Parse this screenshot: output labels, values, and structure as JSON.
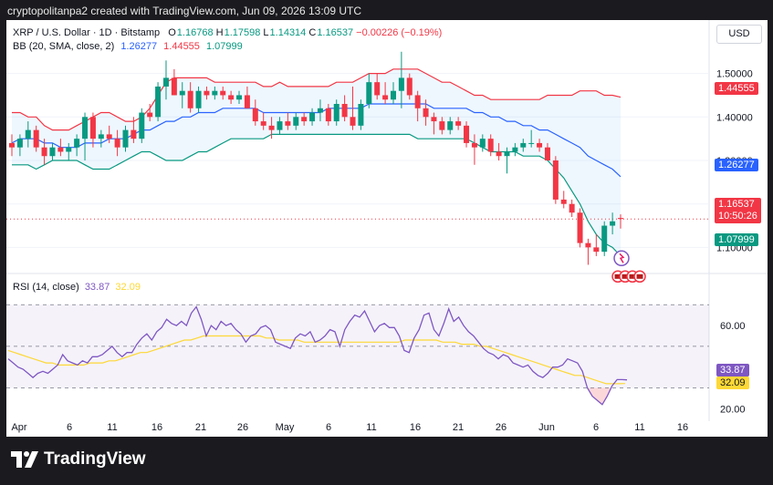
{
  "header": {
    "caption": "cryptopolitanpa2 created with TradingView.com, Jun 09, 2026 13:09 UTC"
  },
  "legend": {
    "symbol": "XRP / U.S. Dollar · 1D · Bitstamp",
    "o_label": "O",
    "o": "1.16768",
    "h_label": "H",
    "h": "1.17598",
    "l_label": "L",
    "l": "1.14314",
    "c_label": "C",
    "c": "1.16537",
    "change": "−0.00226 (−0.19%)",
    "bb_label": "BB (20, SMA, close, 2)",
    "bb_mid": "1.26277",
    "bb_upper": "1.44555",
    "bb_lower": "1.07999",
    "rsi_label": "RSI (14, close)",
    "rsi_value": "33.87",
    "rsi_ma": "32.09"
  },
  "currency": "USD",
  "price_badges": {
    "upper": "1.44555",
    "mid": "1.26277",
    "last": "1.16537",
    "countdown": "10:50:26",
    "lower": "1.07999"
  },
  "rsi_badges": {
    "rsi": "33.87",
    "ma": "32.09"
  },
  "footer": {
    "brand": "TradingView"
  },
  "colors": {
    "up": "#089981",
    "down": "#f23645",
    "bb_upper": "#f23645",
    "bb_mid": "#2962ff",
    "bb_lower": "#089981",
    "bb_fill": "#2196f3",
    "rsi": "#7e57c2",
    "rsi_ma": "#fdd835"
  },
  "chart_data": [
    {
      "type": "candlestick",
      "title": "XRP / U.S. Dollar · 1D · Bitstamp",
      "y_axis_ticks": [
        "1.10000",
        "1.20000",
        "1.30000",
        "1.40000",
        "1.50000"
      ],
      "ylim": [
        1.04,
        1.56
      ],
      "x_axis_ticks": [
        "Apr",
        "6",
        "11",
        "16",
        "21",
        "26",
        "May",
        "6",
        "11",
        "16",
        "21",
        "26",
        "Jun",
        "6",
        "11",
        "16"
      ],
      "candles": [
        [
          1.34,
          1.36,
          1.31,
          1.33
        ],
        [
          1.33,
          1.36,
          1.31,
          1.35
        ],
        [
          1.35,
          1.39,
          1.33,
          1.37
        ],
        [
          1.37,
          1.38,
          1.32,
          1.33
        ],
        [
          1.33,
          1.35,
          1.29,
          1.31
        ],
        [
          1.31,
          1.34,
          1.3,
          1.33
        ],
        [
          1.33,
          1.35,
          1.31,
          1.32
        ],
        [
          1.32,
          1.34,
          1.3,
          1.33
        ],
        [
          1.33,
          1.36,
          1.31,
          1.35
        ],
        [
          1.35,
          1.41,
          1.3,
          1.4
        ],
        [
          1.4,
          1.41,
          1.33,
          1.35
        ],
        [
          1.35,
          1.37,
          1.33,
          1.36
        ],
        [
          1.36,
          1.38,
          1.34,
          1.35
        ],
        [
          1.35,
          1.37,
          1.31,
          1.33
        ],
        [
          1.33,
          1.38,
          1.32,
          1.37
        ],
        [
          1.37,
          1.4,
          1.34,
          1.35
        ],
        [
          1.35,
          1.42,
          1.34,
          1.41
        ],
        [
          1.41,
          1.43,
          1.39,
          1.4
        ],
        [
          1.4,
          1.48,
          1.39,
          1.47
        ],
        [
          1.47,
          1.53,
          1.44,
          1.49
        ],
        [
          1.49,
          1.51,
          1.45,
          1.45
        ],
        [
          1.45,
          1.48,
          1.42,
          1.46
        ],
        [
          1.46,
          1.48,
          1.41,
          1.42
        ],
        [
          1.42,
          1.47,
          1.41,
          1.46
        ],
        [
          1.46,
          1.47,
          1.44,
          1.45
        ],
        [
          1.45,
          1.47,
          1.44,
          1.46
        ],
        [
          1.46,
          1.47,
          1.44,
          1.45
        ],
        [
          1.45,
          1.46,
          1.43,
          1.44
        ],
        [
          1.44,
          1.46,
          1.43,
          1.45
        ],
        [
          1.45,
          1.47,
          1.42,
          1.42
        ],
        [
          1.42,
          1.44,
          1.38,
          1.39
        ],
        [
          1.39,
          1.41,
          1.37,
          1.38
        ],
        [
          1.38,
          1.4,
          1.35,
          1.37
        ],
        [
          1.37,
          1.4,
          1.36,
          1.39
        ],
        [
          1.39,
          1.41,
          1.37,
          1.38
        ],
        [
          1.38,
          1.41,
          1.37,
          1.4
        ],
        [
          1.4,
          1.41,
          1.38,
          1.39
        ],
        [
          1.39,
          1.42,
          1.38,
          1.41
        ],
        [
          1.41,
          1.44,
          1.39,
          1.42
        ],
        [
          1.42,
          1.43,
          1.38,
          1.39
        ],
        [
          1.39,
          1.44,
          1.38,
          1.43
        ],
        [
          1.43,
          1.45,
          1.39,
          1.4
        ],
        [
          1.4,
          1.47,
          1.37,
          1.38
        ],
        [
          1.38,
          1.44,
          1.37,
          1.43
        ],
        [
          1.43,
          1.5,
          1.42,
          1.48
        ],
        [
          1.48,
          1.5,
          1.44,
          1.45
        ],
        [
          1.45,
          1.48,
          1.43,
          1.44
        ],
        [
          1.44,
          1.48,
          1.43,
          1.46
        ],
        [
          1.46,
          1.55,
          1.42,
          1.49
        ],
        [
          1.49,
          1.5,
          1.44,
          1.45
        ],
        [
          1.45,
          1.46,
          1.39,
          1.42
        ],
        [
          1.42,
          1.44,
          1.38,
          1.4
        ],
        [
          1.4,
          1.41,
          1.36,
          1.39
        ],
        [
          1.39,
          1.4,
          1.36,
          1.37
        ],
        [
          1.37,
          1.4,
          1.36,
          1.39
        ],
        [
          1.39,
          1.4,
          1.37,
          1.38
        ],
        [
          1.38,
          1.39,
          1.33,
          1.34
        ],
        [
          1.34,
          1.36,
          1.29,
          1.33
        ],
        [
          1.33,
          1.36,
          1.32,
          1.35
        ],
        [
          1.35,
          1.36,
          1.31,
          1.32
        ],
        [
          1.32,
          1.34,
          1.3,
          1.31
        ],
        [
          1.31,
          1.33,
          1.27,
          1.32
        ],
        [
          1.32,
          1.34,
          1.31,
          1.33
        ],
        [
          1.33,
          1.35,
          1.32,
          1.34
        ],
        [
          1.34,
          1.37,
          1.33,
          1.34
        ],
        [
          1.34,
          1.35,
          1.32,
          1.33
        ],
        [
          1.33,
          1.34,
          1.3,
          1.3
        ],
        [
          1.3,
          1.31,
          1.2,
          1.21
        ],
        [
          1.21,
          1.23,
          1.19,
          1.2
        ],
        [
          1.2,
          1.21,
          1.17,
          1.18
        ],
        [
          1.18,
          1.19,
          1.1,
          1.11
        ],
        [
          1.11,
          1.12,
          1.06,
          1.1
        ],
        [
          1.1,
          1.13,
          1.08,
          1.09
        ],
        [
          1.09,
          1.16,
          1.08,
          1.15
        ],
        [
          1.15,
          1.18,
          1.13,
          1.16
        ],
        [
          1.16768,
          1.17598,
          1.14314,
          1.16537
        ]
      ],
      "bollinger": {
        "upper": [
          1.41,
          1.41,
          1.4,
          1.4,
          1.38,
          1.37,
          1.37,
          1.37,
          1.38,
          1.39,
          1.4,
          1.41,
          1.41,
          1.4,
          1.39,
          1.39,
          1.4,
          1.42,
          1.45,
          1.48,
          1.49,
          1.49,
          1.49,
          1.49,
          1.49,
          1.48,
          1.48,
          1.48,
          1.48,
          1.48,
          1.48,
          1.47,
          1.47,
          1.48,
          1.47,
          1.47,
          1.47,
          1.47,
          1.47,
          1.47,
          1.48,
          1.48,
          1.48,
          1.49,
          1.5,
          1.5,
          1.5,
          1.51,
          1.51,
          1.51,
          1.51,
          1.5,
          1.49,
          1.48,
          1.48,
          1.47,
          1.46,
          1.45,
          1.45,
          1.44,
          1.44,
          1.44,
          1.44,
          1.44,
          1.44,
          1.44,
          1.45,
          1.45,
          1.45,
          1.45,
          1.46,
          1.46,
          1.46,
          1.45,
          1.45,
          1.44555
        ],
        "mid": [
          1.34,
          1.35,
          1.35,
          1.35,
          1.34,
          1.34,
          1.33,
          1.33,
          1.33,
          1.34,
          1.34,
          1.34,
          1.35,
          1.35,
          1.35,
          1.36,
          1.37,
          1.37,
          1.38,
          1.39,
          1.39,
          1.4,
          1.4,
          1.41,
          1.41,
          1.41,
          1.42,
          1.42,
          1.42,
          1.42,
          1.42,
          1.41,
          1.41,
          1.41,
          1.41,
          1.41,
          1.41,
          1.41,
          1.41,
          1.42,
          1.42,
          1.42,
          1.42,
          1.42,
          1.43,
          1.43,
          1.43,
          1.43,
          1.43,
          1.43,
          1.43,
          1.43,
          1.42,
          1.42,
          1.42,
          1.42,
          1.42,
          1.41,
          1.41,
          1.4,
          1.4,
          1.39,
          1.39,
          1.38,
          1.38,
          1.37,
          1.37,
          1.36,
          1.35,
          1.34,
          1.33,
          1.31,
          1.3,
          1.29,
          1.28,
          1.26277
        ],
        "lower": [
          1.29,
          1.29,
          1.29,
          1.28,
          1.29,
          1.3,
          1.3,
          1.3,
          1.3,
          1.29,
          1.28,
          1.28,
          1.28,
          1.29,
          1.3,
          1.31,
          1.32,
          1.32,
          1.31,
          1.3,
          1.3,
          1.3,
          1.31,
          1.32,
          1.32,
          1.33,
          1.34,
          1.35,
          1.35,
          1.35,
          1.35,
          1.35,
          1.36,
          1.36,
          1.36,
          1.36,
          1.36,
          1.36,
          1.36,
          1.36,
          1.36,
          1.36,
          1.36,
          1.36,
          1.36,
          1.36,
          1.36,
          1.36,
          1.36,
          1.36,
          1.35,
          1.35,
          1.35,
          1.35,
          1.35,
          1.35,
          1.35,
          1.34,
          1.33,
          1.32,
          1.32,
          1.32,
          1.32,
          1.31,
          1.31,
          1.31,
          1.3,
          1.28,
          1.26,
          1.23,
          1.2,
          1.16,
          1.13,
          1.11,
          1.1,
          1.07999
        ]
      }
    },
    {
      "type": "line",
      "title": "RSI (14, close)",
      "y_axis_ticks": [
        "20.00",
        "40.00",
        "60.00"
      ],
      "ylim": [
        14,
        78
      ],
      "bands": {
        "upper": 70,
        "middle": 50,
        "lower": 30
      },
      "series": [
        {
          "name": "RSI (14, close)",
          "values": [
            44,
            42,
            40,
            39,
            37,
            35,
            37,
            38,
            37,
            39,
            41,
            46,
            43,
            42,
            41,
            43,
            42,
            45,
            45,
            46,
            48,
            50,
            47,
            45,
            47,
            47,
            51,
            54,
            56,
            53,
            57,
            59,
            63,
            61,
            60,
            62,
            60,
            66,
            69,
            63,
            55,
            60,
            58,
            62,
            60,
            61,
            58,
            56,
            52,
            55,
            56,
            59,
            60,
            58,
            52,
            51,
            50,
            49,
            54,
            56,
            55,
            57,
            52,
            53,
            55,
            58,
            57,
            50,
            58,
            62,
            65,
            64,
            67,
            62,
            57,
            60,
            61,
            59,
            59,
            55,
            48,
            47,
            54,
            58,
            65,
            66,
            58,
            55,
            61,
            68,
            62,
            64,
            60,
            57,
            55,
            52,
            49,
            47,
            46,
            44,
            46,
            45,
            42,
            41,
            40,
            41,
            38,
            36,
            35,
            37,
            40,
            40,
            41,
            44,
            43,
            42,
            38,
            30,
            26,
            24,
            22,
            26,
            31,
            34,
            34,
            33.87
          ]
        },
        {
          "name": "MA",
          "values": [
            48,
            47,
            46,
            45,
            44,
            43,
            42,
            42,
            41,
            41,
            41,
            41,
            41,
            42,
            42,
            42,
            43,
            43,
            44,
            45,
            46,
            47,
            47,
            48,
            49,
            50,
            51,
            52,
            53,
            53,
            54,
            55,
            55,
            55,
            55,
            55,
            55,
            55,
            55,
            55,
            55,
            54,
            54,
            53,
            53,
            53,
            53,
            52,
            52,
            52,
            52,
            52,
            52,
            52,
            52,
            52,
            52,
            52,
            52,
            52,
            52,
            52,
            52,
            53,
            53,
            53,
            53,
            53,
            53,
            52,
            52,
            52,
            51,
            51,
            51,
            50,
            50,
            49,
            48,
            47,
            46,
            45,
            44,
            43,
            42,
            41,
            40,
            39,
            38,
            37,
            36,
            36,
            35,
            34,
            33,
            32,
            32,
            32,
            32.09
          ]
        }
      ]
    }
  ]
}
